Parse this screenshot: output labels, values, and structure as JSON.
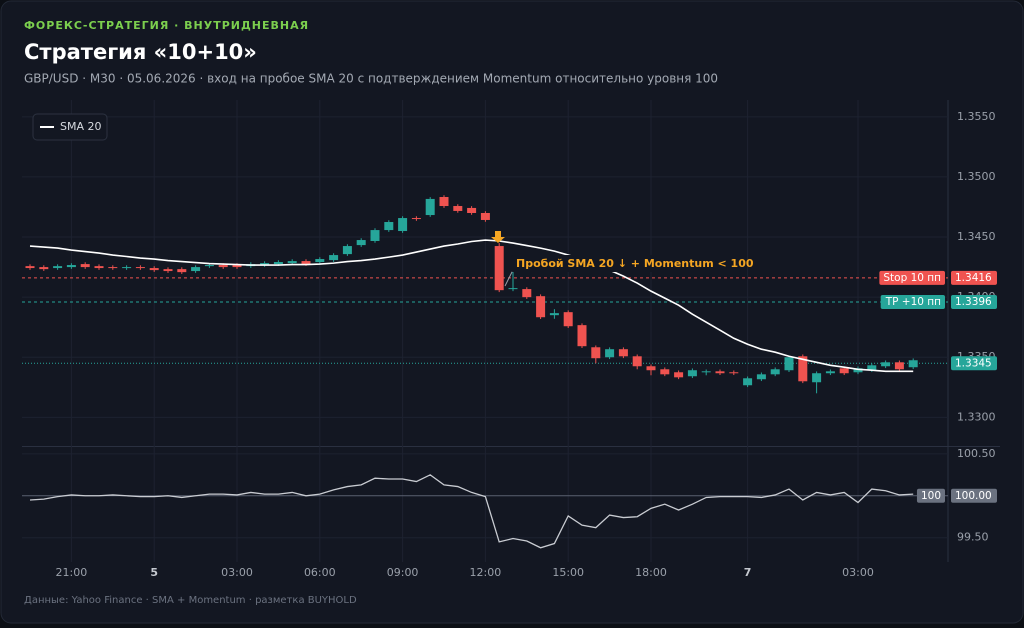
{
  "header": {
    "kicker": "ФОРЕКС-СТРАТЕГИЯ · ВНУТРИДНЕВНАЯ",
    "title": "Стратегия «10+10»",
    "subtitle": "GBP/USD · M30 · 05.06.2026 · вход на пробое SMA 20 с подтверждением Momentum относительно уровня 100"
  },
  "chart_data": {
    "type": "candlestick",
    "categories": [
      null,
      null,
      null,
      "21:00",
      null,
      null,
      null,
      null,
      null,
      "5",
      null,
      null,
      null,
      null,
      null,
      "03:00",
      null,
      null,
      null,
      null,
      null,
      "06:00",
      null,
      null,
      null,
      null,
      null,
      "09:00",
      null,
      null,
      null,
      null,
      null,
      "12:00",
      null,
      null,
      null,
      null,
      null,
      "15:00",
      null,
      null,
      null,
      null,
      null,
      "18:00",
      null,
      null,
      null,
      null,
      null,
      null,
      "7",
      null,
      null,
      null,
      null,
      null,
      null,
      null,
      "03:00",
      null,
      null,
      null,
      null
    ],
    "open": [
      1.34258,
      1.3425,
      1.34242,
      1.3425,
      1.34275,
      1.34258,
      1.3425,
      1.34242,
      1.3425,
      1.34242,
      1.34233,
      1.34233,
      1.34217,
      1.34258,
      1.34267,
      1.34267,
      1.34258,
      1.34267,
      1.34275,
      1.34283,
      1.343,
      1.34292,
      1.34308,
      1.34358,
      1.34433,
      1.34467,
      1.34558,
      1.3455,
      1.34658,
      1.34683,
      1.34833,
      1.34758,
      1.34742,
      1.347,
      1.34425,
      1.34067,
      1.34067,
      1.34008,
      1.3385,
      1.33875,
      1.33767,
      1.33583,
      1.335,
      1.33567,
      1.33508,
      1.33425,
      1.334,
      1.33375,
      1.33342,
      1.33375,
      1.33383,
      1.33375,
      1.33267,
      1.33317,
      1.33358,
      1.33392,
      1.33508,
      1.33292,
      1.33367,
      1.33408,
      1.33375,
      1.33392,
      1.33425,
      1.33458,
      1.33417
    ],
    "high": [
      1.34273,
      1.34265,
      1.34273,
      1.34282,
      1.3429,
      1.34273,
      1.34265,
      1.34265,
      1.34265,
      1.34257,
      1.34248,
      1.34248,
      1.34265,
      1.34282,
      1.34282,
      1.34282,
      1.3429,
      1.34298,
      1.34307,
      1.34315,
      1.34315,
      1.34332,
      1.34365,
      1.3444,
      1.3449,
      1.34573,
      1.3464,
      1.34673,
      1.34673,
      1.34832,
      1.34848,
      1.34773,
      1.34757,
      1.34715,
      1.3445,
      1.34225,
      1.34082,
      1.34023,
      1.339,
      1.3389,
      1.33782,
      1.33598,
      1.33582,
      1.33582,
      1.33523,
      1.3344,
      1.33415,
      1.3339,
      1.33407,
      1.33398,
      1.33398,
      1.3339,
      1.3334,
      1.33373,
      1.33415,
      1.33515,
      1.33523,
      1.33382,
      1.33398,
      1.33423,
      1.33423,
      1.33448,
      1.33473,
      1.33473,
      1.3349
    ],
    "low": [
      1.34227,
      1.34218,
      1.34227,
      1.34235,
      1.34235,
      1.34227,
      1.34227,
      1.34227,
      1.34227,
      1.3421,
      1.34202,
      1.34193,
      1.34202,
      1.34243,
      1.34235,
      1.34235,
      1.34243,
      1.34252,
      1.3426,
      1.34268,
      1.3426,
      1.34277,
      1.34293,
      1.34343,
      1.34418,
      1.34452,
      1.34543,
      1.34535,
      1.34635,
      1.34668,
      1.34743,
      1.34702,
      1.34685,
      1.34627,
      1.34042,
      1.3405,
      1.33985,
      1.33818,
      1.3382,
      1.33743,
      1.33577,
      1.3345,
      1.33485,
      1.33493,
      1.334,
      1.3335,
      1.33343,
      1.33318,
      1.33327,
      1.3335,
      1.33352,
      1.33352,
      1.33252,
      1.33302,
      1.33343,
      1.33377,
      1.33285,
      1.332,
      1.33352,
      1.33352,
      1.3336,
      1.33377,
      1.3341,
      1.33385,
      1.33402
    ],
    "close": [
      1.34242,
      1.34233,
      1.34258,
      1.34267,
      1.3425,
      1.34242,
      1.34242,
      1.3425,
      1.34242,
      1.34225,
      1.34217,
      1.34208,
      1.3425,
      1.34267,
      1.3425,
      1.3425,
      1.34275,
      1.34283,
      1.34292,
      1.343,
      1.34275,
      1.34317,
      1.3435,
      1.34425,
      1.34475,
      1.34558,
      1.34625,
      1.34658,
      1.3465,
      1.34817,
      1.34758,
      1.34717,
      1.347,
      1.34642,
      1.34058,
      1.34075,
      1.34,
      1.33833,
      1.33867,
      1.33758,
      1.33592,
      1.33492,
      1.33567,
      1.33508,
      1.33425,
      1.33392,
      1.33358,
      1.33333,
      1.33392,
      1.33383,
      1.33367,
      1.33367,
      1.33325,
      1.33358,
      1.334,
      1.335,
      1.333,
      1.33367,
      1.33383,
      1.33367,
      1.33408,
      1.33433,
      1.33458,
      1.334,
      1.33475
    ],
    "colors": {
      "up": "#26a69a",
      "down": "#ef5350"
    },
    "ylim": [
      1.3277,
      1.3564
    ],
    "yticks": [
      {
        "value": 1.355,
        "label": "1.3550"
      },
      {
        "value": 1.35,
        "label": "1.3500"
      },
      {
        "value": 1.345,
        "label": "1.3450"
      },
      {
        "value": 1.34,
        "label": "1.3400"
      },
      {
        "value": 1.335,
        "label": "1.3350"
      },
      {
        "value": 1.33,
        "label": "1.3300"
      }
    ],
    "grid": true,
    "legend": "top-left",
    "overlays": [
      {
        "name": "SMA 20",
        "color": "#ffffff",
        "values": [
          1.34425,
          1.34417,
          1.34408,
          1.34392,
          1.34379,
          1.34367,
          1.3435,
          1.34338,
          1.34325,
          1.34317,
          1.34304,
          1.34296,
          1.34288,
          1.34279,
          1.34275,
          1.34271,
          1.34267,
          1.34267,
          1.34267,
          1.34271,
          1.34271,
          1.34275,
          1.34283,
          1.34296,
          1.34304,
          1.34317,
          1.34333,
          1.3435,
          1.34375,
          1.344,
          1.34425,
          1.34442,
          1.34463,
          1.34475,
          1.34467,
          1.3445,
          1.34429,
          1.34408,
          1.34383,
          1.3435,
          1.34317,
          1.34275,
          1.34225,
          1.34175,
          1.34117,
          1.3405,
          1.33992,
          1.33933,
          1.33858,
          1.33792,
          1.33725,
          1.33658,
          1.33608,
          1.33567,
          1.33542,
          1.33508,
          1.33483,
          1.33458,
          1.33433,
          1.33417,
          1.334,
          1.33392,
          1.33383,
          1.33383,
          1.33383
        ]
      }
    ],
    "levels": [
      {
        "name": "Stop 10 пп",
        "value": 1.3416,
        "color": "#ef5350"
      },
      {
        "name": "TP +10 пп",
        "value": 1.3396,
        "color": "#26a69a"
      },
      {
        "value": 1.3345,
        "color": "#26a69a"
      }
    ],
    "annotation": "Пробой SMA 20 ↓ + Momentum < 100",
    "momentum": {
      "color": "#c9ccd2",
      "values": [
        99.95,
        99.96,
        99.99,
        100.01,
        100,
        100,
        100.01,
        100,
        99.99,
        99.99,
        100,
        99.98,
        100,
        100.02,
        100.02,
        100.01,
        100.04,
        100.02,
        100.02,
        100.04,
        100,
        100.02,
        100.07,
        100.11,
        100.13,
        100.21,
        100.2,
        100.2,
        100.17,
        100.25,
        100.13,
        100.11,
        100.04,
        99.99,
        99.45,
        99.49,
        99.46,
        99.38,
        99.43,
        99.76,
        99.65,
        99.62,
        99.77,
        99.74,
        99.75,
        99.85,
        99.9,
        99.83,
        99.9,
        99.98,
        99.99,
        99.99,
        99.99,
        99.98,
        100.01,
        100.08,
        99.95,
        100.04,
        100.01,
        100.04,
        99.92,
        100.08,
        100.06,
        100.01,
        100.02
      ],
      "ylim": [
        99.21,
        100.57
      ],
      "yticks": [
        {
          "value": 100.5,
          "label": "100.50"
        },
        {
          "value": 99.5,
          "label": "99.50"
        }
      ],
      "ref_level": {
        "value": 100,
        "label": "100.00"
      }
    }
  },
  "footer": "Данные: Yahoo Finance · SMA + Momentum · разметка BUYHOLD"
}
